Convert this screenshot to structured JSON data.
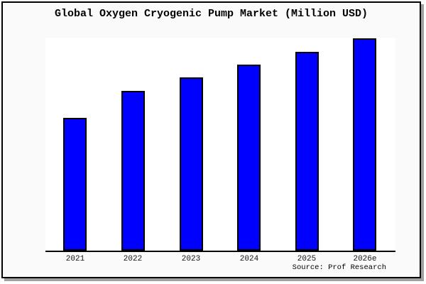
{
  "source": {
    "label": "Source: Prof Research"
  },
  "colors": {
    "bar_fill": "#0000ff",
    "bar_border": "#000000",
    "axis": "#000000",
    "frame_border": "#000000",
    "frame_shadow": "#a0a0a0",
    "background": "#fafafa",
    "plot_background": "#ffffff"
  },
  "chart_data": {
    "type": "bar",
    "title": "Global Oxygen Cryogenic Pump Market (Million USD)",
    "categories": [
      "2021",
      "2022",
      "2023",
      "2024",
      "2025",
      "2026e"
    ],
    "values": [
      62.5,
      75.3,
      81.6,
      87.6,
      93.6,
      100
    ],
    "xlabel": "",
    "ylabel": "",
    "ylim": [
      0,
      100
    ],
    "y_axis_visible": false,
    "gridlines": false,
    "legend": false,
    "bar_color": "#0000ff"
  }
}
